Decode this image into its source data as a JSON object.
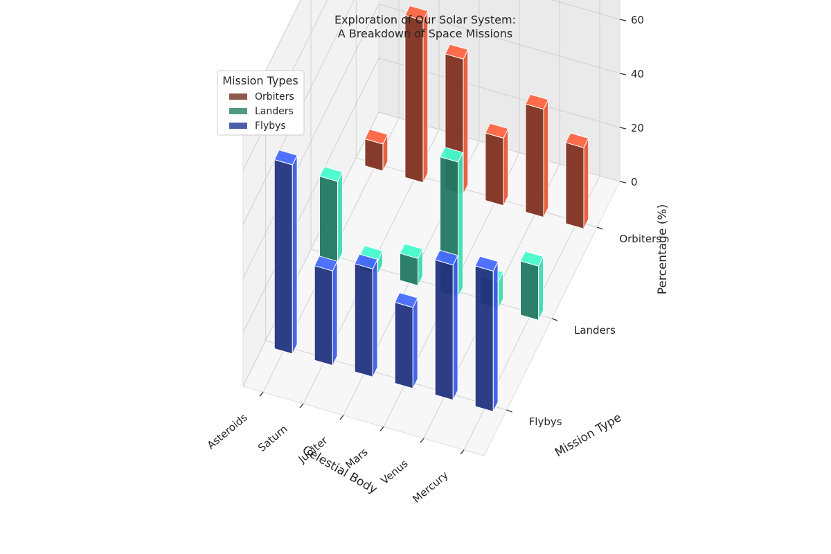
{
  "chart_data": {
    "type": "bar3d",
    "title_line1": "Exploration of Our Solar System:",
    "title_line2": "A Breakdown of Space Missions",
    "xlabel": "Celestial Body",
    "ylabel": "Mission Type",
    "zlabel": "Percentage (%)",
    "categories": [
      "Asteroids",
      "Saturn",
      "Jupiter",
      "Mars",
      "Venus",
      "Mercury"
    ],
    "mission_types": [
      "Flybys",
      "Landers",
      "Orbiters"
    ],
    "zlim": [
      0,
      100
    ],
    "zticks": [
      "0",
      "20",
      "40",
      "60",
      "80",
      "100"
    ],
    "grid": true,
    "legend": {
      "title": "Mission Types",
      "placement": "upper-left",
      "entries": [
        {
          "label": "Orbiters",
          "color": "#8c5a4a"
        },
        {
          "label": "Landers",
          "color": "#4e9a84"
        },
        {
          "label": "Flybys",
          "color": "#4a5fa8"
        }
      ]
    },
    "series": [
      {
        "name": "Flybys",
        "color": "#3d5de8",
        "values": [
          70,
          35,
          40,
          30,
          50,
          52
        ]
      },
      {
        "name": "Landers",
        "color": "#3ddbb3",
        "values": [
          30,
          5,
          10,
          50,
          10,
          20
        ]
      },
      {
        "name": "Orbiters",
        "color": "#e8583a",
        "values": [
          10,
          60,
          50,
          25,
          40,
          30
        ]
      }
    ]
  }
}
